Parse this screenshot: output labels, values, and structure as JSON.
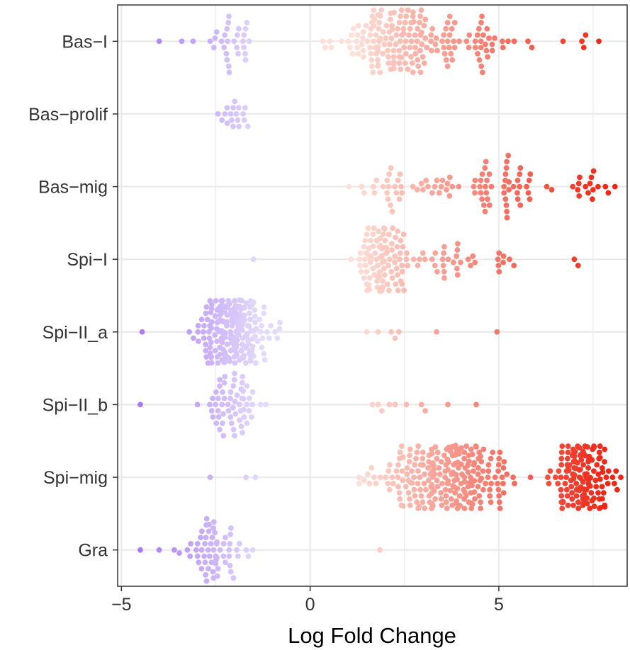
{
  "chart_data": {
    "type": "scatter",
    "subtype": "beeswarm",
    "title": "",
    "xlabel": "Log Fold Change",
    "ylabel": "",
    "xlim": [
      -5.1,
      8.4
    ],
    "x_ticks": [
      -5,
      0,
      5
    ],
    "x_tick_labels": [
      "−5",
      "0",
      "5"
    ],
    "categories": [
      "Bas-I",
      "Bas-prolif",
      "Bas-mig",
      "Spi-I",
      "Spi-II_a",
      "Spi-II_b",
      "Spi-mig",
      "Gra"
    ],
    "category_labels": [
      "Bas−I",
      "Bas−prolif",
      "Bas−mig",
      "Spi−I",
      "Spi−II_a",
      "Spi−II_b",
      "Spi−mig",
      "Gra"
    ],
    "grid": true,
    "legend": "none",
    "colors": {
      "negative_strong": "#a97af5",
      "negative_weak": "#e4dbfb",
      "positive_weak": "#fde0d8",
      "positive_strong": "#ee2716",
      "grid": "#ebebeb",
      "axis": "#333333"
    },
    "series": [
      {
        "category": "Bas-I",
        "groups": [
          {
            "x": [
              -4.0,
              -3.4,
              -3.1,
              -2.65,
              -2.55
            ]
          },
          {
            "x": -2.0,
            "spread": 0.7,
            "count": 26
          },
          {
            "x": 2.2,
            "spread": 2.0,
            "count": 145
          },
          {
            "x": 4.5,
            "spread": 1.8,
            "count": 42
          },
          {
            "x": [
              6.7,
              7.2,
              7.25,
              7.3,
              7.65
            ]
          }
        ]
      },
      {
        "category": "Bas-prolif",
        "groups": [
          {
            "x": -2.0,
            "spread": 0.55,
            "count": 18
          }
        ]
      },
      {
        "category": "Bas-mig",
        "groups": [
          {
            "x": 2.6,
            "spread": 2.1,
            "count": 42
          },
          {
            "x": 5.2,
            "spread": 1.2,
            "count": 45
          },
          {
            "x": 7.5,
            "spread": 0.7,
            "count": 16
          }
        ]
      },
      {
        "category": "Spi-I",
        "groups": [
          {
            "x": -1.5,
            "spread": 0,
            "count": 1
          },
          {
            "x": 1.9,
            "spread": 1.0,
            "count": 95
          },
          {
            "x": 3.6,
            "spread": 1.4,
            "count": 30
          },
          {
            "x": 5.0,
            "spread": 0.6,
            "count": 8
          },
          {
            "x": [
              7.0,
              7.1
            ]
          }
        ]
      },
      {
        "category": "Spi-II_a",
        "groups": [
          {
            "x": [
              -4.45
            ]
          },
          {
            "x": -2.0,
            "spread": 1.2,
            "count": 220
          },
          {
            "x": [
              1.5,
              1.8,
              2.15,
              2.25,
              2.35,
              3.35,
              4.95
            ]
          }
        ]
      },
      {
        "category": "Spi-II_b",
        "groups": [
          {
            "x": [
              -4.5
            ]
          },
          {
            "x": -1.95,
            "spread": 1.05,
            "count": 60
          },
          {
            "x": [
              1.65,
              1.8,
              1.9,
              2.1,
              2.25,
              2.55,
              2.95,
              3.05,
              3.65,
              4.4
            ]
          }
        ]
      },
      {
        "category": "Spi-mig",
        "groups": [
          {
            "x": [
              -2.65,
              -1.7,
              -1.45
            ]
          },
          {
            "x": 3.6,
            "spread": 2.3,
            "count": 235
          },
          {
            "x": 7.2,
            "spread": 1.1,
            "count": 140
          }
        ]
      },
      {
        "category": "Gra",
        "groups": [
          {
            "x": [
              -4.5,
              -4.0
            ]
          },
          {
            "x": -2.5,
            "spread": 1.1,
            "count": 62
          },
          {
            "x": [
              1.85
            ]
          }
        ]
      }
    ]
  }
}
